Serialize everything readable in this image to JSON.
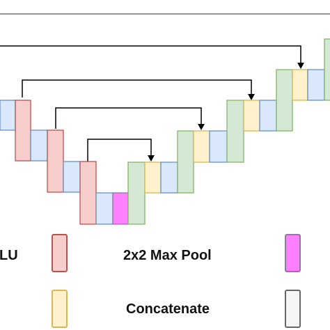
{
  "legend": {
    "relu_partial": "LU",
    "maxpool": "2x2 Max Pool",
    "concat": "Concatenate"
  },
  "colors": {
    "conv_fill": "#f8cecc",
    "conv_stroke": "#b85450",
    "bn_fill": "#dae8fc",
    "bn_stroke": "#6c8ebf",
    "up_fill": "#d5e8d4",
    "up_stroke": "#82b366",
    "cat_fill": "#fff2cc",
    "cat_stroke": "#d6b656",
    "pool_fill": "#ff80ff",
    "pool_stroke": "#9673a6",
    "grey_fill": "#f5f5f5",
    "grey_stroke": "#666666",
    "arrow": "#000000"
  },
  "icons": [
    "arrow-head-icon"
  ]
}
